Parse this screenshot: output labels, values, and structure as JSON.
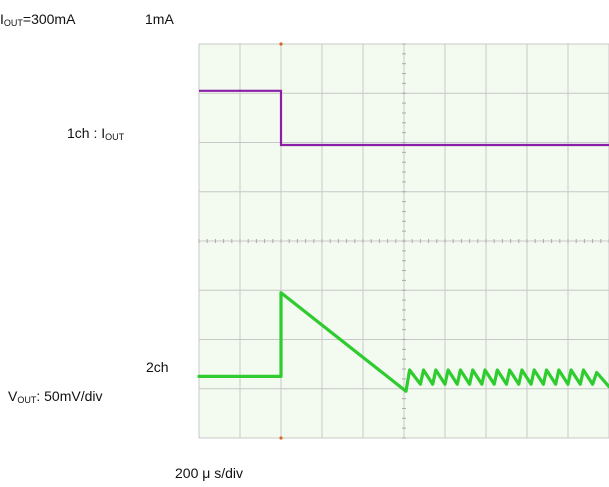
{
  "labels": {
    "load_step": {
      "before_prefix": "I",
      "before_sub": "OUT",
      "before_value": "=300mA",
      "after": "1mA"
    },
    "ch1": {
      "prefix": "1ch : I",
      "sub": "OUT"
    },
    "ch2": {
      "name": "2ch",
      "prefix": "V",
      "sub": "OUT",
      "suffix": ": 50mV/div"
    },
    "timebase": "200 μ s/div"
  },
  "chart_data": {
    "type": "line",
    "title": "",
    "xlabel": "200 μ s/div",
    "grid": true,
    "x_divisions": 10,
    "y_divisions": 8,
    "time_per_div_us": 200,
    "x_range_div": [
      0,
      10
    ],
    "y_range_div": [
      0,
      8
    ],
    "trigger_div": 2,
    "series": [
      {
        "name": "1ch : IOUT",
        "color": "#8a1fa6",
        "x_div": [
          0,
          2,
          2,
          10
        ],
        "y_div": [
          7.05,
          7.05,
          5.95,
          5.95
        ]
      },
      {
        "name": "2ch VOUT: 50mV/div",
        "color": "#2ecc2e",
        "x_div": [
          0,
          2,
          2,
          5.05,
          5.4,
          5.7,
          6.0,
          6.3,
          6.6,
          6.9,
          7.2,
          7.5,
          7.8,
          8.1,
          8.4,
          8.7,
          9.0,
          9.3,
          9.6,
          10
        ],
        "y_div": [
          1.25,
          1.25,
          2.95,
          0.95,
          1.2,
          1.2,
          1.2,
          1.2,
          1.2,
          1.2,
          1.2,
          1.2,
          1.2,
          1.2,
          1.2,
          1.2,
          1.2,
          1.2,
          1.2,
          1.15
        ],
        "ripple_amplitude_div": 0.18
      }
    ]
  },
  "colors": {
    "plot_background": "#f3faf0",
    "grid": "#c8c8c8",
    "axis_ticks": "#aaaaaa",
    "trigger_marker": "#d46a1c"
  }
}
